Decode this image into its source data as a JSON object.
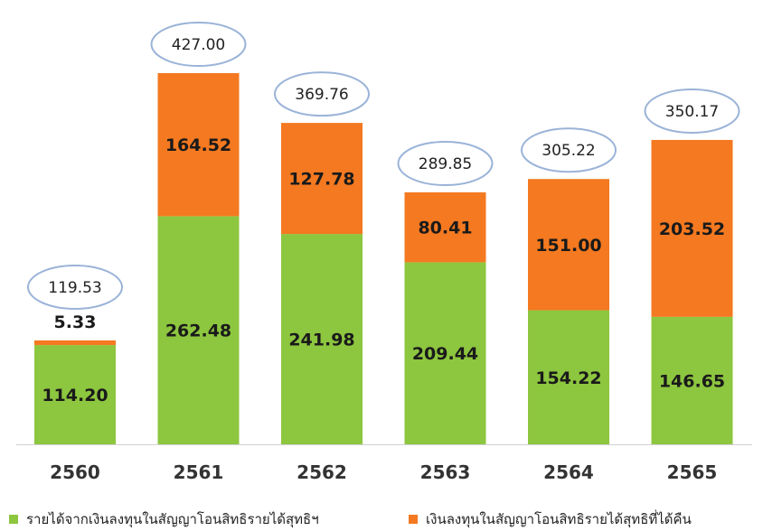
{
  "chart_data": {
    "type": "bar",
    "stacked": true,
    "categories": [
      "2560",
      "2561",
      "2562",
      "2563",
      "2564",
      "2565"
    ],
    "series": [
      {
        "name": "รายได้จากเงินลงทุนในสัญญาโอนสิทธิรายได้สุทธิฯ",
        "color": "#8DC63F",
        "values": [
          114.2,
          262.48,
          241.98,
          209.44,
          154.22,
          146.65
        ],
        "labels": [
          "114.20",
          "262.48",
          "241.98",
          "209.44",
          "154.22",
          "146.65"
        ]
      },
      {
        "name": "เงินลงทุนในสัญญาโอนสิทธิรายได้สุทธิที่ได้คืน",
        "color": "#F47920",
        "values": [
          5.33,
          164.52,
          127.78,
          80.41,
          151.0,
          203.52
        ],
        "labels": [
          "5.33",
          "164.52",
          "127.78",
          "80.41",
          "151.00",
          "203.52"
        ]
      }
    ],
    "totals": [
      "119.53",
      "427.00",
      "369.76",
      "289.85",
      "305.22",
      "350.17"
    ],
    "ylim": [
      0,
      427
    ],
    "grid": false,
    "legend_position": "bottom",
    "total_bubble_color": "#9AB3D8"
  }
}
